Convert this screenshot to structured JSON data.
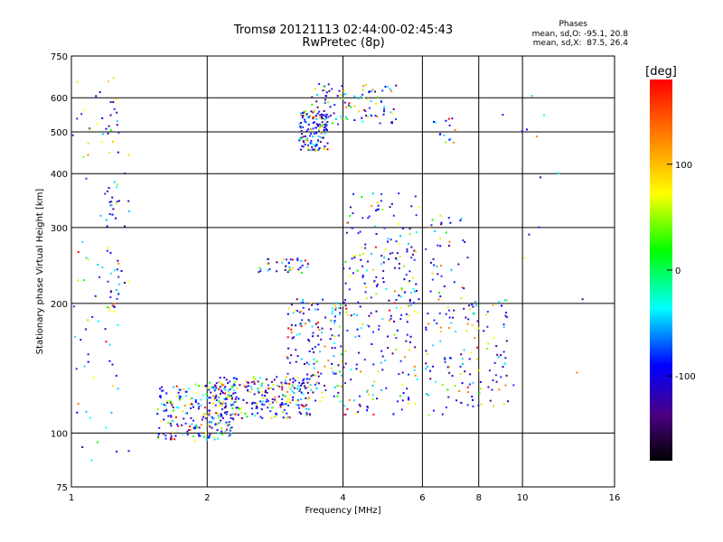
{
  "header": {
    "title_line1": "Tromsø 20121113 02:44:00-02:45:43",
    "title_line2": "RwPretec (8p)",
    "stats_title": "Phases",
    "stats_o": "mean, sd,O: -95.1, 20.8",
    "stats_x": "mean, sd,X:  87.5, 26.4"
  },
  "colorbar": {
    "unit": "[deg]",
    "ticks": [
      {
        "value": 100,
        "label": "100"
      },
      {
        "value": 0,
        "label": "0"
      },
      {
        "value": -100,
        "label": "-100"
      }
    ],
    "range": [
      -180,
      180
    ]
  },
  "chart_data": {
    "type": "scatter",
    "xlabel": "Frequency [MHz]",
    "ylabel": "Stationary phase Virtual Height [km]",
    "xscale": "log",
    "yscale": "log",
    "xlim": [
      1,
      16
    ],
    "ylim": [
      75,
      750
    ],
    "xticks": [
      1,
      2,
      4,
      6,
      8,
      10,
      16
    ],
    "yticks": [
      75,
      100,
      200,
      300,
      400,
      500,
      600,
      750
    ],
    "grid": true,
    "clusters": [
      {
        "x": [
          1.0,
          1.35
        ],
        "y": [
          85,
          680
        ],
        "n": 90
      },
      {
        "x": [
          1.2,
          1.28
        ],
        "y": [
          190,
          650
        ],
        "n": 45
      },
      {
        "x": [
          1.55,
          2.3
        ],
        "y": [
          96,
          130
        ],
        "n": 220
      },
      {
        "x": [
          2.0,
          3.4
        ],
        "y": [
          108,
          135
        ],
        "n": 260
      },
      {
        "x": [
          3.0,
          4.0
        ],
        "y": [
          118,
          205
        ],
        "n": 160
      },
      {
        "x": [
          3.2,
          3.7
        ],
        "y": [
          450,
          560
        ],
        "n": 140
      },
      {
        "x": [
          3.4,
          5.3
        ],
        "y": [
          520,
          650
        ],
        "n": 110
      },
      {
        "x": [
          4.0,
          5.9
        ],
        "y": [
          110,
          360
        ],
        "n": 260
      },
      {
        "x": [
          2.6,
          3.4
        ],
        "y": [
          235,
          255
        ],
        "n": 40
      },
      {
        "x": [
          6.1,
          7.6
        ],
        "y": [
          110,
          320
        ],
        "n": 110
      },
      {
        "x": [
          7.6,
          9.3
        ],
        "y": [
          115,
          205
        ],
        "n": 70
      },
      {
        "x": [
          6.3,
          7.1
        ],
        "y": [
          470,
          540
        ],
        "n": 14
      },
      {
        "x": [
          9.0,
          16.0
        ],
        "y": [
          100,
          620
        ],
        "n": 14
      }
    ],
    "phase_mean_o": -95.1,
    "phase_sd_o": 20.8,
    "phase_mean_x": 87.5,
    "phase_sd_x": 26.4
  }
}
